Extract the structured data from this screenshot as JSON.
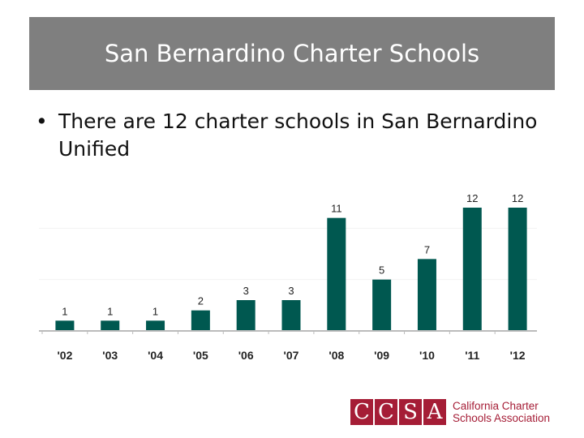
{
  "slide": {
    "title": "San Bernardino Charter Schools",
    "bullet_marker": "•",
    "bullet": "There are 12 charter schools in San Bernardino Unified"
  },
  "chart_data": {
    "type": "bar",
    "categories": [
      "'02",
      "'03",
      "'04",
      "'05",
      "'06",
      "'07",
      "'08",
      "'09",
      "'10",
      "'11",
      "'12"
    ],
    "values": [
      1,
      1,
      1,
      2,
      3,
      3,
      11,
      5,
      7,
      12,
      12
    ],
    "title": "",
    "xlabel": "",
    "ylabel": "",
    "ylim": [
      0,
      12
    ],
    "grid": false,
    "bar_color": "#005850",
    "data_labels": true
  },
  "logo": {
    "letters": [
      "C",
      "C",
      "S",
      "A"
    ],
    "line1": "California Charter",
    "line2": "Schools Association",
    "color": "#a51d36"
  }
}
